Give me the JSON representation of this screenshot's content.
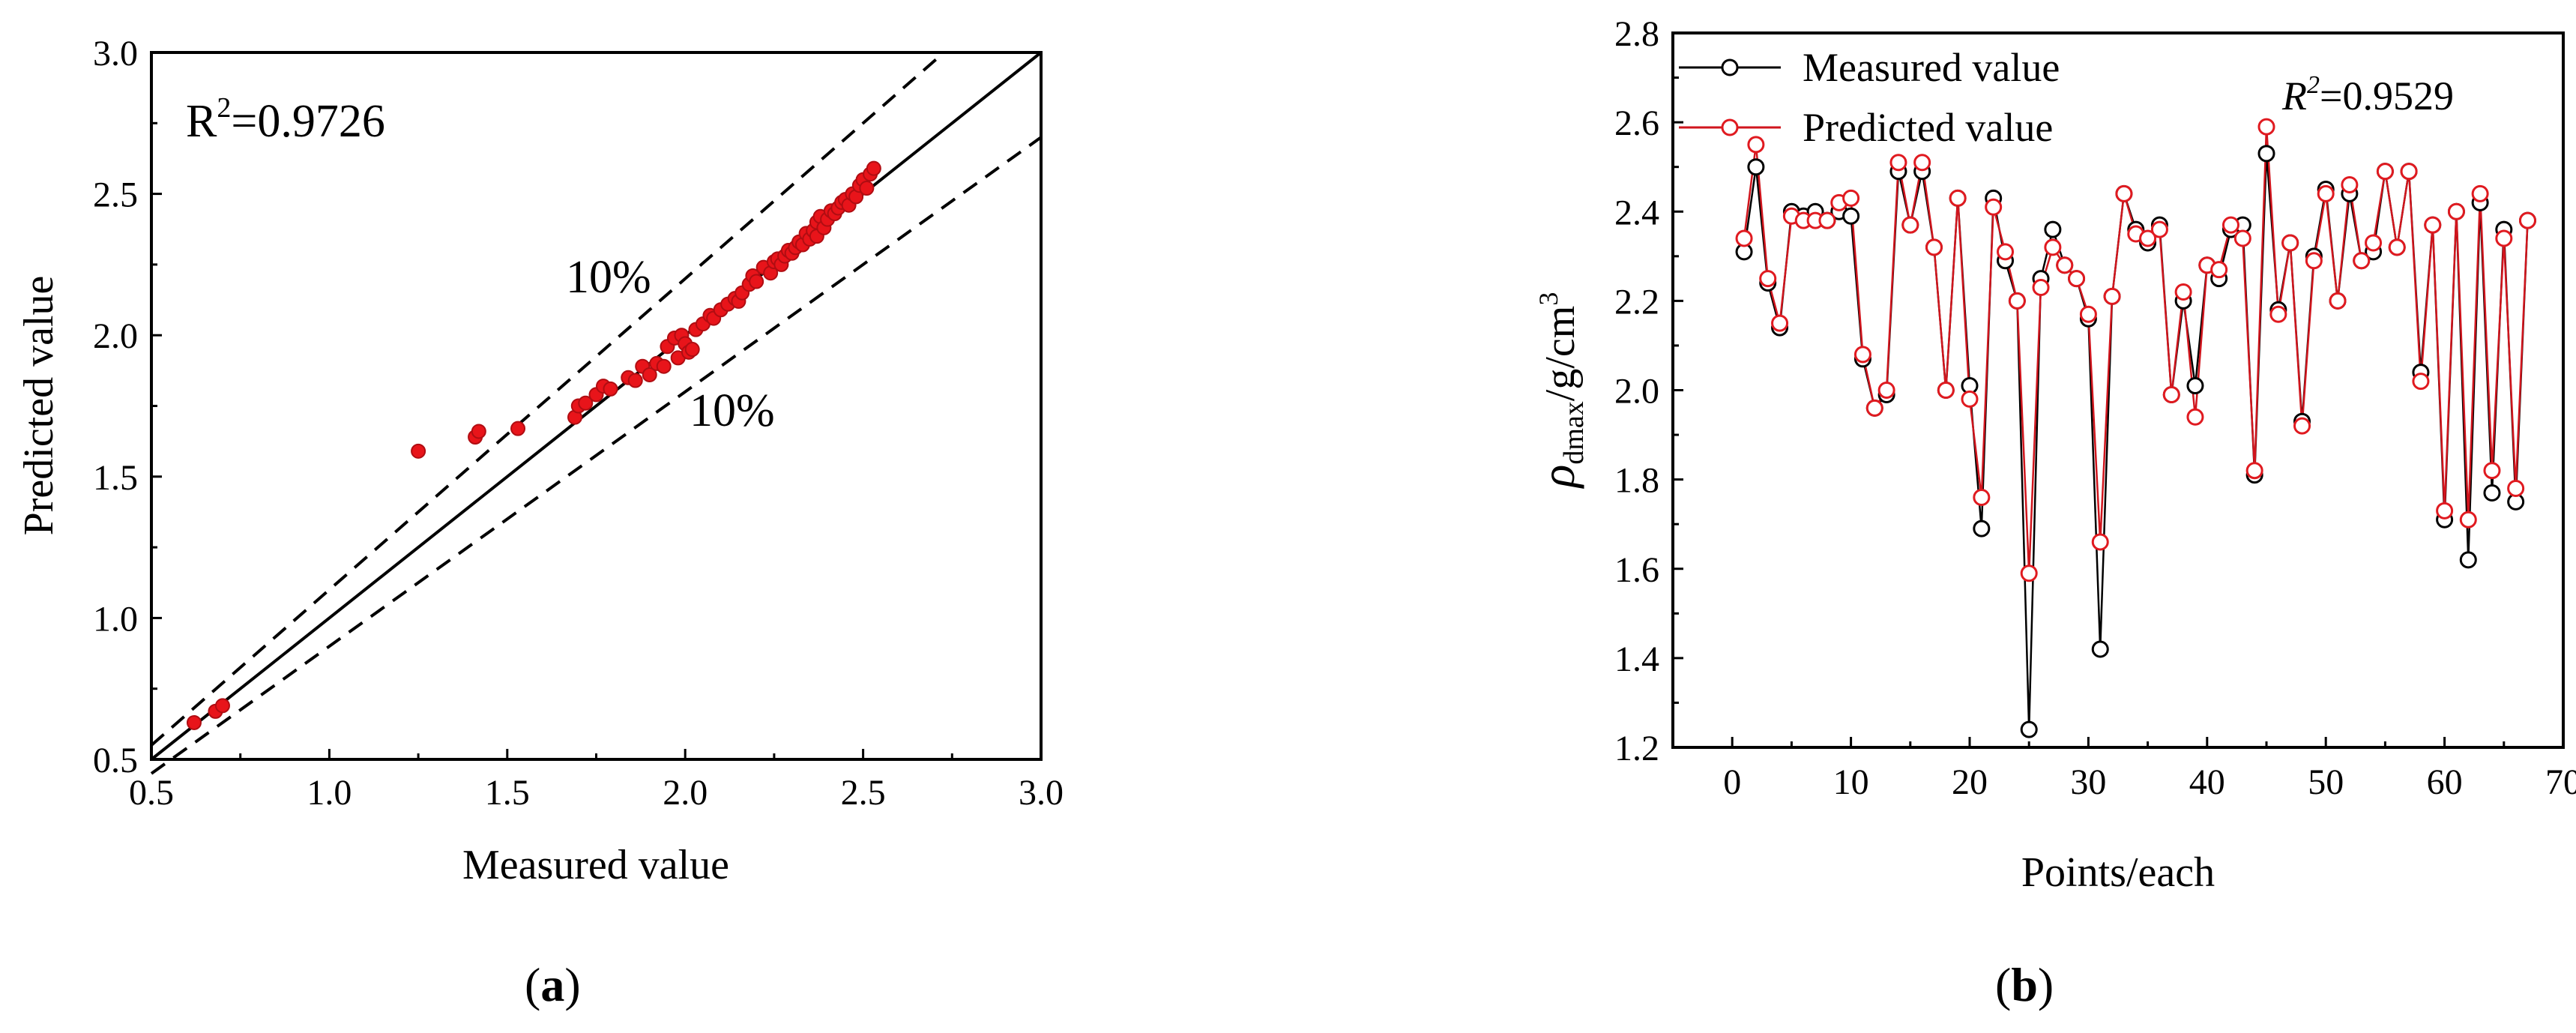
{
  "chart_data": [
    {
      "type": "scatter",
      "panel_label": "a",
      "xlabel": "Measured value",
      "ylabel": "Predicted value",
      "xlim": [
        0.5,
        3.0
      ],
      "ylim": [
        0.5,
        3.0
      ],
      "xticks": [
        "0.5",
        "1.0",
        "1.5",
        "2.0",
        "2.5",
        "3.0"
      ],
      "yticks": [
        "0.5",
        "1.0",
        "1.5",
        "2.0",
        "2.5",
        "3.0"
      ],
      "r2_label": "R",
      "r2_sup": "2",
      "r2_value": "=0.9726",
      "band_label_upper": "10%",
      "band_label_lower": "10%",
      "reference_lines": [
        {
          "kind": "identity",
          "slope": 1.0,
          "style": "solid"
        },
        {
          "kind": "upper",
          "slope": 1.1,
          "style": "dashed"
        },
        {
          "kind": "lower",
          "slope": 0.9,
          "style": "dashed"
        }
      ],
      "point_color": "#e8141a",
      "points": [
        [
          1.25,
          1.59
        ],
        [
          1.41,
          1.64
        ],
        [
          1.42,
          1.66
        ],
        [
          1.53,
          1.67
        ],
        [
          1.69,
          1.71
        ],
        [
          1.7,
          1.75
        ],
        [
          1.72,
          1.76
        ],
        [
          1.75,
          1.79
        ],
        [
          1.77,
          1.82
        ],
        [
          1.79,
          1.81
        ],
        [
          1.84,
          1.85
        ],
        [
          1.86,
          1.84
        ],
        [
          1.88,
          1.89
        ],
        [
          1.9,
          1.86
        ],
        [
          1.92,
          1.9
        ],
        [
          1.94,
          1.89
        ],
        [
          1.95,
          1.96
        ],
        [
          1.97,
          1.99
        ],
        [
          1.98,
          1.92
        ],
        [
          1.99,
          2.0
        ],
        [
          2.0,
          1.97
        ],
        [
          2.01,
          1.94
        ],
        [
          2.02,
          1.95
        ],
        [
          2.03,
          2.02
        ],
        [
          2.05,
          2.04
        ],
        [
          2.07,
          2.07
        ],
        [
          2.08,
          2.06
        ],
        [
          2.1,
          2.09
        ],
        [
          2.12,
          2.11
        ],
        [
          2.14,
          2.13
        ],
        [
          2.15,
          2.12
        ],
        [
          2.16,
          2.15
        ],
        [
          2.18,
          2.18
        ],
        [
          2.19,
          2.21
        ],
        [
          2.2,
          2.19
        ],
        [
          2.22,
          2.24
        ],
        [
          2.24,
          2.22
        ],
        [
          2.25,
          2.26
        ],
        [
          2.26,
          2.27
        ],
        [
          2.27,
          2.25
        ],
        [
          2.28,
          2.28
        ],
        [
          2.29,
          2.3
        ],
        [
          2.3,
          2.29
        ],
        [
          2.31,
          2.31
        ],
        [
          2.32,
          2.33
        ],
        [
          2.33,
          2.32
        ],
        [
          2.34,
          2.36
        ],
        [
          2.35,
          2.34
        ],
        [
          2.36,
          2.37
        ],
        [
          2.37,
          2.35
        ],
        [
          2.37,
          2.4
        ],
        [
          2.38,
          2.42
        ],
        [
          2.39,
          2.38
        ],
        [
          2.4,
          2.41
        ],
        [
          2.41,
          2.44
        ],
        [
          2.42,
          2.43
        ],
        [
          2.43,
          2.45
        ],
        [
          2.44,
          2.47
        ],
        [
          2.45,
          2.48
        ],
        [
          2.46,
          2.46
        ],
        [
          2.47,
          2.5
        ],
        [
          2.48,
          2.49
        ],
        [
          2.49,
          2.53
        ],
        [
          2.5,
          2.55
        ],
        [
          2.51,
          2.52
        ],
        [
          2.52,
          2.57
        ],
        [
          2.53,
          2.59
        ],
        [
          0.62,
          0.63
        ],
        [
          0.68,
          0.67
        ],
        [
          0.7,
          0.69
        ]
      ]
    },
    {
      "type": "line",
      "panel_label": "b",
      "xlabel": "Points/each",
      "ylabel_symbol": "ρ",
      "ylabel_sub": "dmax",
      "ylabel_rest": "/g/cm",
      "ylabel_sup": "3",
      "xlim": [
        -5,
        70
      ],
      "ylim": [
        1.2,
        2.8
      ],
      "xticks": [
        "0",
        "10",
        "20",
        "30",
        "40",
        "50",
        "60",
        "70"
      ],
      "yticks": [
        "1.2",
        "1.4",
        "1.6",
        "1.8",
        "2.0",
        "2.2",
        "2.4",
        "2.6",
        "2.8"
      ],
      "r2_label": "R",
      "r2_sup": "2",
      "r2_value": "=0.9529",
      "legend_position": "top-left",
      "x": [
        1,
        2,
        3,
        4,
        5,
        6,
        7,
        8,
        9,
        10,
        11,
        12,
        13,
        14,
        15,
        16,
        17,
        18,
        19,
        20,
        21,
        22,
        23,
        24,
        25,
        26,
        27,
        28,
        29,
        30,
        31,
        32,
        33,
        34,
        35,
        36,
        37,
        38,
        39,
        40,
        41,
        42,
        43,
        44,
        45,
        46,
        47,
        48,
        49,
        50,
        51,
        52,
        53,
        54,
        55,
        56,
        57,
        58,
        59,
        60,
        61,
        62,
        63,
        64,
        65,
        66,
        67
      ],
      "series": [
        {
          "name": "Measured value",
          "color": "#000000",
          "values": [
            2.31,
            2.5,
            2.24,
            2.14,
            2.4,
            2.39,
            2.4,
            2.38,
            2.4,
            2.39,
            2.07,
            1.96,
            1.99,
            2.49,
            2.37,
            2.49,
            2.32,
            2.0,
            2.43,
            2.01,
            1.69,
            2.43,
            2.29,
            2.2,
            1.24,
            2.25,
            2.36,
            2.28,
            2.25,
            2.16,
            1.42,
            2.21,
            2.44,
            2.36,
            2.33,
            2.37,
            1.99,
            2.2,
            2.01,
            2.28,
            2.25,
            2.36,
            2.37,
            1.81,
            2.53,
            2.18,
            2.33,
            1.93,
            2.3,
            2.45,
            2.2,
            2.44,
            2.29,
            2.31,
            2.49,
            2.32,
            2.49,
            2.04,
            2.37,
            1.71,
            2.4,
            1.62,
            2.42,
            1.77,
            2.36,
            1.75,
            2.38
          ]
        },
        {
          "name": "Predicted value",
          "color": "#d0151d",
          "values": [
            2.34,
            2.55,
            2.25,
            2.15,
            2.39,
            2.38,
            2.38,
            2.38,
            2.42,
            2.43,
            2.08,
            1.96,
            2.0,
            2.51,
            2.37,
            2.51,
            2.32,
            2.0,
            2.43,
            1.98,
            1.76,
            2.41,
            2.31,
            2.2,
            1.59,
            2.23,
            2.32,
            2.28,
            2.25,
            2.17,
            1.66,
            2.21,
            2.44,
            2.35,
            2.34,
            2.36,
            1.99,
            2.22,
            1.94,
            2.28,
            2.27,
            2.37,
            2.34,
            1.82,
            2.59,
            2.17,
            2.33,
            1.92,
            2.29,
            2.44,
            2.2,
            2.46,
            2.29,
            2.33,
            2.49,
            2.32,
            2.49,
            2.02,
            2.37,
            1.73,
            2.4,
            1.71,
            2.44,
            1.82,
            2.34,
            1.78,
            2.38
          ]
        }
      ]
    }
  ]
}
